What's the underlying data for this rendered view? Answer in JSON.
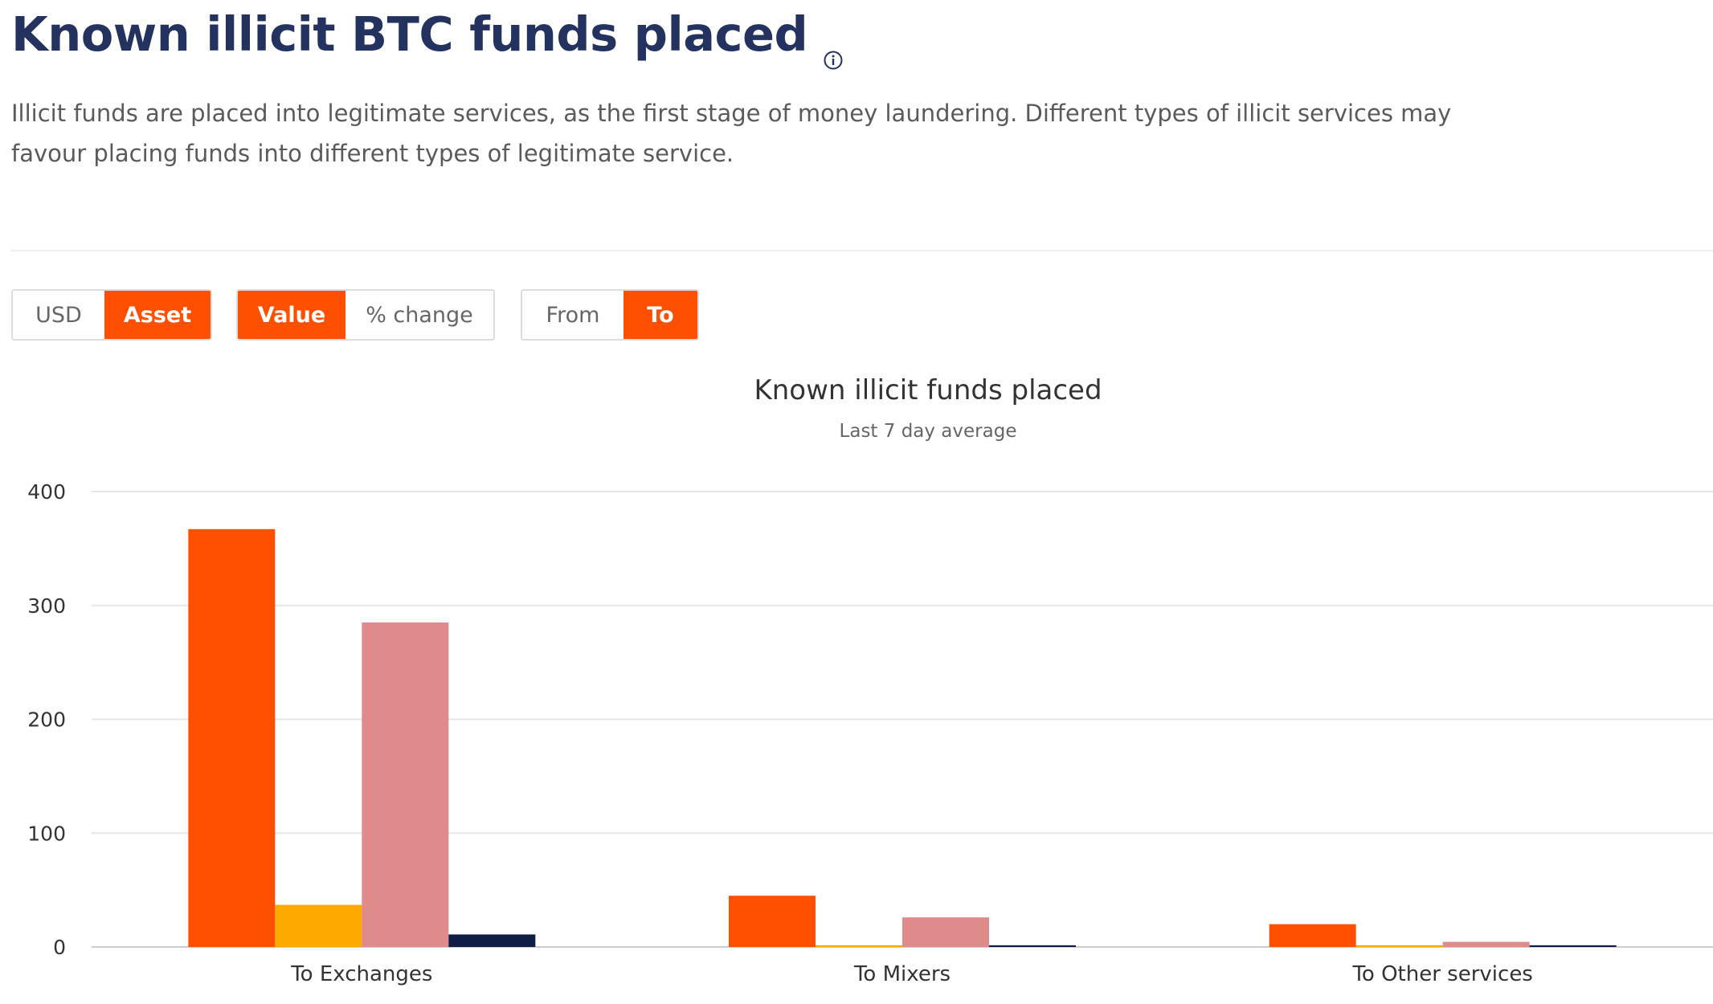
{
  "header": {
    "title": "Known illicit BTC funds placed",
    "info_icon": "info-circle-icon",
    "description": "Illicit funds are placed into legitimate services, as the first stage of money laundering. Different types of illicit services may favour placing funds into different types of legitimate service."
  },
  "controls": {
    "currency": {
      "options": [
        "USD",
        "Asset"
      ],
      "selected": "Asset"
    },
    "mode": {
      "options": [
        "Value",
        "% change"
      ],
      "selected": "Value"
    },
    "direction": {
      "options": [
        "From",
        "To"
      ],
      "selected": "To"
    }
  },
  "colors": {
    "accent": "#fe5000",
    "title": "#24325f",
    "series": [
      "#fe5000",
      "#fcaa00",
      "#e08b8b",
      "#0e1e45"
    ]
  },
  "chart_data": {
    "type": "bar",
    "title": "Known illicit funds placed",
    "subtitle": "Last 7 day average",
    "categories": [
      "To Exchanges",
      "To Mixers",
      "To Other services"
    ],
    "series": [
      {
        "values": [
          367,
          45,
          20
        ]
      },
      {
        "values": [
          37,
          1.5,
          1.5
        ]
      },
      {
        "values": [
          285,
          26,
          4.5
        ]
      },
      {
        "values": [
          11,
          1.5,
          1.5
        ]
      }
    ],
    "yticks": [
      0,
      100,
      200,
      300,
      400
    ],
    "ylim": [
      0,
      400
    ],
    "xlabel": "",
    "ylabel": "",
    "grid": true,
    "legend": "none"
  }
}
